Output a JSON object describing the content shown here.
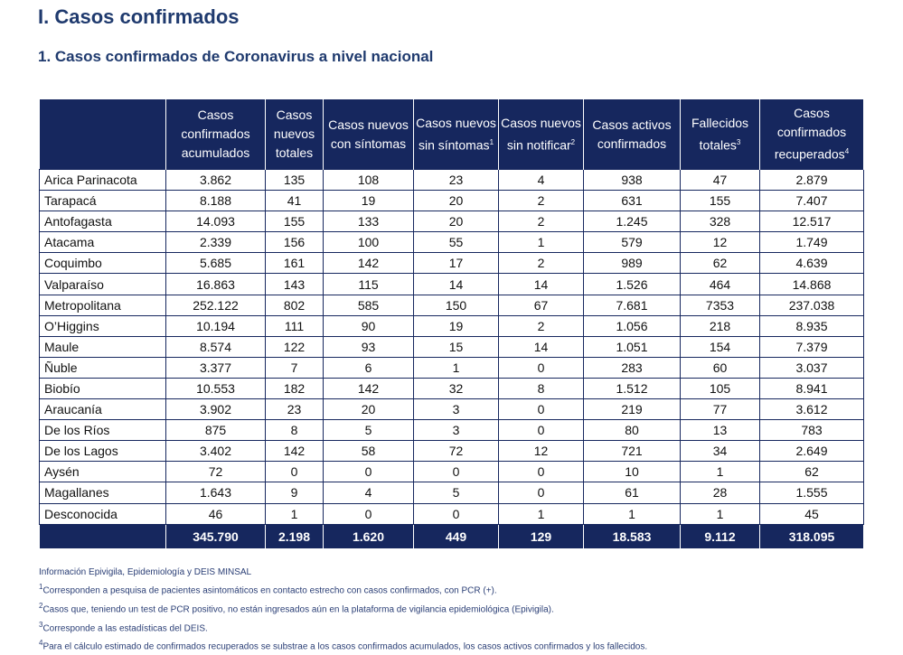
{
  "header": {
    "title": "I. Casos confirmados",
    "subtitle": "1. Casos confirmados de Coronavirus a nivel nacional"
  },
  "table": {
    "columns": [
      {
        "text": "Casos confirmados acumulados"
      },
      {
        "text": "Casos nuevos totales"
      },
      {
        "text": "Casos nuevos con síntomas"
      },
      {
        "text": "Casos nuevos sin síntomas",
        "sup": "1"
      },
      {
        "text": "Casos nuevos sin notificar",
        "sup": "2"
      },
      {
        "text": "Casos activos confirmados"
      },
      {
        "text": "Fallecidos totales",
        "sup": "3"
      },
      {
        "text": "Casos confirmados recuperados",
        "sup": "4"
      }
    ],
    "rows": [
      [
        "Arica Parinacota",
        "3.862",
        "135",
        "108",
        "23",
        "4",
        "938",
        "47",
        "2.879"
      ],
      [
        "Tarapacá",
        "8.188",
        "41",
        "19",
        "20",
        "2",
        "631",
        "155",
        "7.407"
      ],
      [
        "Antofagasta",
        "14.093",
        "155",
        "133",
        "20",
        "2",
        "1.245",
        "328",
        "12.517"
      ],
      [
        "Atacama",
        "2.339",
        "156",
        "100",
        "55",
        "1",
        "579",
        "12",
        "1.749"
      ],
      [
        "Coquimbo",
        "5.685",
        "161",
        "142",
        "17",
        "2",
        "989",
        "62",
        "4.639"
      ],
      [
        "Valparaíso",
        "16.863",
        "143",
        "115",
        "14",
        "14",
        "1.526",
        "464",
        "14.868"
      ],
      [
        "Metropolitana",
        "252.122",
        "802",
        "585",
        "150",
        "67",
        "7.681",
        "7353",
        "237.038"
      ],
      [
        "O’Higgins",
        "10.194",
        "111",
        "90",
        "19",
        "2",
        "1.056",
        "218",
        "8.935"
      ],
      [
        "Maule",
        "8.574",
        "122",
        "93",
        "15",
        "14",
        "1.051",
        "154",
        "7.379"
      ],
      [
        "Ñuble",
        "3.377",
        "7",
        "6",
        "1",
        "0",
        "283",
        "60",
        "3.037"
      ],
      [
        "Biobío",
        "10.553",
        "182",
        "142",
        "32",
        "8",
        "1.512",
        "105",
        "8.941"
      ],
      [
        "Araucanía",
        "3.902",
        "23",
        "20",
        "3",
        "0",
        "219",
        "77",
        "3.612"
      ],
      [
        "De los Ríos",
        "875",
        "8",
        "5",
        "3",
        "0",
        "80",
        "13",
        "783"
      ],
      [
        "De los Lagos",
        "3.402",
        "142",
        "58",
        "72",
        "12",
        "721",
        "34",
        "2.649"
      ],
      [
        "Aysén",
        "72",
        "0",
        "0",
        "0",
        "0",
        "10",
        "1",
        "62"
      ],
      [
        "Magallanes",
        "1.643",
        "9",
        "4",
        "5",
        "0",
        "61",
        "28",
        "1.555"
      ],
      [
        "Desconocida",
        "46",
        "1",
        "0",
        "0",
        "1",
        "1",
        "1",
        "45"
      ]
    ],
    "totals": [
      "345.790",
      "2.198",
      "1.620",
      "449",
      "129",
      "18.583",
      "9.112",
      "318.095"
    ]
  },
  "footnotes": [
    {
      "text": "Información Epivigila, Epidemiología y DEIS MINSAL"
    },
    {
      "sup": "1",
      "text": "Corresponden a pesquisa de pacientes asintomáticos en contacto estrecho con casos confirmados, con PCR (+)."
    },
    {
      "sup": "2",
      "text": "Casos que, teniendo un test de PCR positivo, no están ingresados aún en la plataforma de vigilancia epidemiológica (Epivigila)."
    },
    {
      "sup": "3",
      "text": "Corresponde a las estadísticas del DEIS."
    },
    {
      "sup": "4",
      "text": "Para el cálculo estimado de confirmados recuperados se substrae a los casos confirmados acumulados, los casos activos confirmados y los fallecidos."
    }
  ]
}
